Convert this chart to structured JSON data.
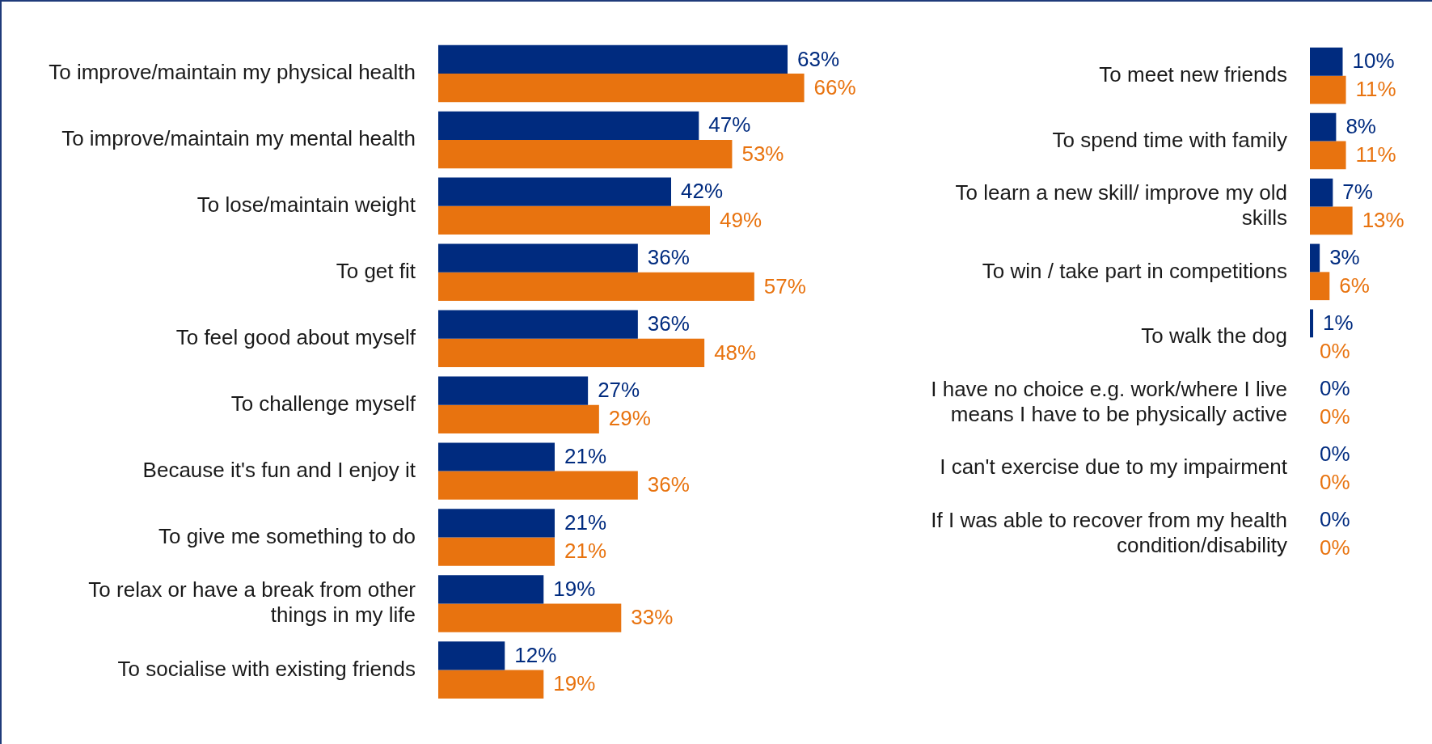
{
  "chart_data": [
    {
      "type": "bar",
      "orientation": "horizontal",
      "tick_labels": "y",
      "categories": [
        "To improve/maintain my physical health",
        "To improve/maintain my mental health",
        "To lose/maintain weight",
        "To get fit",
        "To feel good about myself",
        "To challenge myself",
        "Because it's fun and I enjoy it",
        "To give me something to do",
        "To relax or have a break from other things in my life",
        "To socialise with existing friends"
      ],
      "series": [
        {
          "color": "#002b7f",
          "values": [
            63,
            47,
            42,
            36,
            36,
            27,
            21,
            21,
            19,
            12
          ],
          "value_labels": [
            "63%",
            "47%",
            "42%",
            "36%",
            "36%",
            "27%",
            "21%",
            "21%",
            "19%",
            "12%"
          ]
        },
        {
          "color": "#e8730f",
          "values": [
            66,
            53,
            49,
            57,
            48,
            29,
            36,
            21,
            33,
            19
          ],
          "value_labels": [
            "66%",
            "53%",
            "49%",
            "57%",
            "48%",
            "29%",
            "36%",
            "21%",
            "33%",
            "19%"
          ]
        }
      ]
    },
    {
      "type": "bar",
      "orientation": "horizontal",
      "tick_labels": "y",
      "categories": [
        "To meet new friends",
        "To spend time with family",
        "To learn a new skill/ improve my old skills",
        "To win / take part in competitions",
        "To walk the dog",
        "I have no choice e.g. work/where I live means I have to be physically active",
        "I can't exercise due to my impairment",
        "If I was able to recover from my health condition/disability"
      ],
      "series": [
        {
          "color": "#002b7f",
          "values": [
            10,
            8,
            7,
            3,
            1,
            0,
            0,
            0
          ],
          "value_labels": [
            "10%",
            "8%",
            "7%",
            "3%",
            "1%",
            "0%",
            "0%",
            "0%"
          ]
        },
        {
          "color": "#e8730f",
          "values": [
            11,
            11,
            13,
            6,
            0,
            0,
            0,
            0
          ],
          "value_labels": [
            "11%",
            "11%",
            "13%",
            "6%",
            "0%",
            "0%",
            "0%",
            "0%"
          ]
        }
      ]
    }
  ]
}
